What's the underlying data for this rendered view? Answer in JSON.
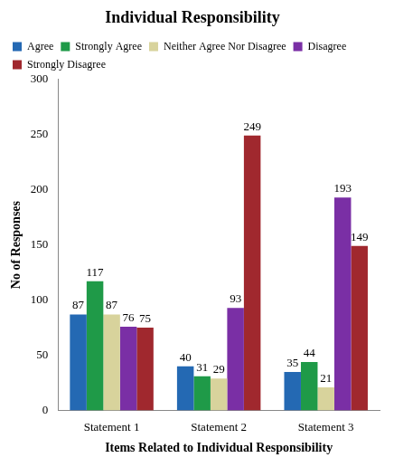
{
  "chart_data": {
    "type": "bar",
    "title": "Individual Responsibility",
    "x_label": "Items Related to Individual Responsibility",
    "y_label": "No of Responses",
    "categories": [
      "Statement 1",
      "Statement 2",
      "Statement 3"
    ],
    "series": [
      {
        "name": "Agree",
        "color": "#2469b3",
        "values": [
          87,
          40,
          35
        ]
      },
      {
        "name": "Strongly Agree",
        "color": "#1f9a48",
        "values": [
          117,
          31,
          44
        ]
      },
      {
        "name": "Neither Agree Nor Disagree",
        "color": "#d8d39c",
        "values": [
          87,
          29,
          21
        ]
      },
      {
        "name": "Disagree",
        "color": "#7a2fa5",
        "values": [
          76,
          93,
          193
        ]
      },
      {
        "name": "Strongly Disagree",
        "color": "#a0282e",
        "values": [
          75,
          249,
          149
        ]
      }
    ],
    "ylim": [
      0,
      300
    ],
    "yticks": [
      0,
      50,
      100,
      150,
      200,
      250,
      300
    ],
    "grid": false,
    "legend": "upper left",
    "data_labels": true
  }
}
